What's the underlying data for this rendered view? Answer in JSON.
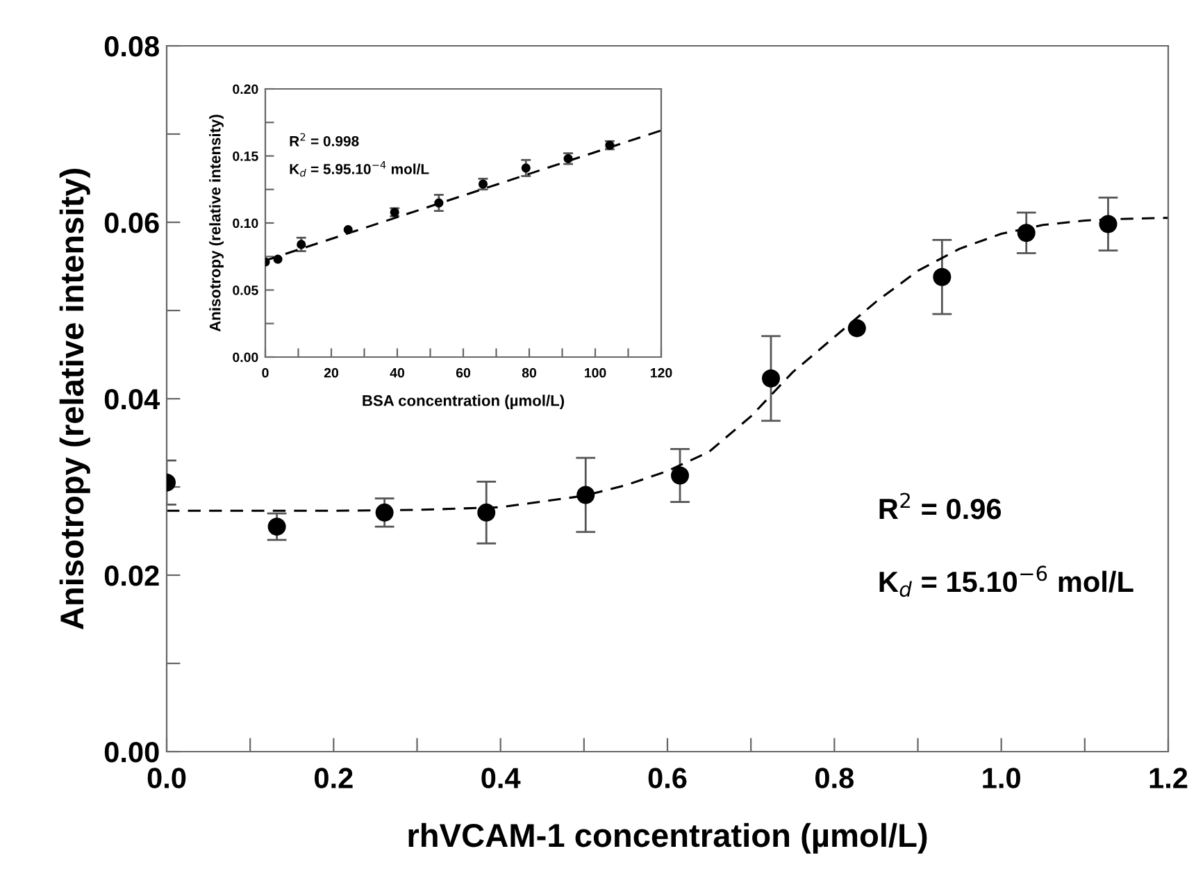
{
  "chart_data": [
    {
      "type": "scatter",
      "xlabel": "rhVCAM-1 concentration (µmol/L)",
      "ylabel": "Anisotropy (relative intensity)",
      "xlim": [
        0,
        1.2
      ],
      "ylim": [
        0,
        0.08
      ],
      "xticks": [
        {
          "value": 0,
          "label": "0.0"
        },
        {
          "value": 0.1,
          "label": null
        },
        {
          "value": 0.2,
          "label": "0.2"
        },
        {
          "value": 0.3,
          "label": null
        },
        {
          "value": 0.4,
          "label": "0.4"
        },
        {
          "value": 0.5,
          "label": null
        },
        {
          "value": 0.6,
          "label": "0.6"
        },
        {
          "value": 0.7,
          "label": null
        },
        {
          "value": 0.8,
          "label": "0.8"
        },
        {
          "value": 0.9,
          "label": null
        },
        {
          "value": 1.0,
          "label": "1.0"
        },
        {
          "value": 1.1,
          "label": null
        },
        {
          "value": 1.2,
          "label": "1.2"
        }
      ],
      "yticks": [
        {
          "value": 0,
          "label": "0.00"
        },
        {
          "value": 0.01,
          "label": null
        },
        {
          "value": 0.02,
          "label": "0.02"
        },
        {
          "value": 0.03,
          "label": null
        },
        {
          "value": 0.04,
          "label": "0.04"
        },
        {
          "value": 0.05,
          "label": null
        },
        {
          "value": 0.06,
          "label": "0.06"
        },
        {
          "value": 0.07,
          "label": null
        },
        {
          "value": 0.08,
          "label": "0.08"
        }
      ],
      "grid": false,
      "legend": false,
      "marker": "circle",
      "annotations": [
        "R$^{2}$ = 0.96",
        "K$_{d}$ = 15.10$^{−6}$ mol/L"
      ],
      "series": [
        {
          "type": "scatter",
          "color": "#000000",
          "x": [
            0.0,
            0.132,
            0.261,
            0.383,
            0.502,
            0.615,
            0.724,
            0.827,
            0.929,
            1.03,
            1.128
          ],
          "values": [
            0.0305,
            0.0255,
            0.0271,
            0.0271,
            0.0291,
            0.0313,
            0.0423,
            0.048,
            0.0538,
            0.0588,
            0.0598
          ],
          "errors": [
            0.0025,
            0.0015,
            0.0016,
            0.0035,
            0.0042,
            0.003,
            0.0048,
            null,
            0.0042,
            0.0023,
            0.003
          ]
        },
        {
          "type": "line",
          "color": "#000000",
          "line_style": "dashed",
          "marker": "none",
          "x": [
            0,
            0.1,
            0.2,
            0.3,
            0.4,
            0.5,
            0.55,
            0.6,
            0.65,
            0.7,
            0.75,
            0.8,
            0.85,
            0.9,
            0.95,
            1.0,
            1.05,
            1.1,
            1.15,
            1.2
          ],
          "values": [
            0.0273,
            0.0273,
            0.0273,
            0.0274,
            0.0277,
            0.029,
            0.0302,
            0.0318,
            0.034,
            0.038,
            0.043,
            0.047,
            0.051,
            0.0545,
            0.057,
            0.0587,
            0.0597,
            0.0602,
            0.0604,
            0.0605
          ]
        }
      ]
    },
    {
      "type": "scatter",
      "xlabel": "BSA concentration (µmol/L)",
      "ylabel": "Anisotropy (relative intensity)",
      "xlim": [
        0,
        120
      ],
      "ylim": [
        0,
        0.2
      ],
      "xticks": [
        0,
        {
          "value": 10,
          "label": null
        },
        20,
        {
          "value": 30,
          "label": null
        },
        40,
        {
          "value": 50,
          "label": null
        },
        60,
        {
          "value": 70,
          "label": null
        },
        80,
        {
          "value": 90,
          "label": null
        },
        100,
        {
          "value": 110,
          "label": null
        },
        120
      ],
      "yticks": [
        {
          "value": 0,
          "label": "0.00"
        },
        {
          "value": 0.025,
          "label": null
        },
        {
          "value": 0.05,
          "label": "0.05"
        },
        {
          "value": 0.075,
          "label": null
        },
        {
          "value": 0.1,
          "label": "0.10"
        },
        {
          "value": 0.125,
          "label": null
        },
        {
          "value": 0.15,
          "label": "0.15"
        },
        {
          "value": 0.175,
          "label": null
        },
        {
          "value": 0.2,
          "label": "0.20"
        }
      ],
      "grid": false,
      "legend": false,
      "marker": "circle",
      "annotations": [
        "R$^{2}$ = 0.998",
        "K$_{d}$ = 5.95.10$^{−4}$ mol/L"
      ],
      "series": [
        {
          "type": "scatter",
          "color": "#000000",
          "x": [
            0,
            3.8,
            10.9,
            25.1,
            39.2,
            52.6,
            66,
            79,
            91.8,
            104.4
          ],
          "values": [
            0.071,
            0.073,
            0.084,
            0.095,
            0.108,
            0.115,
            0.129,
            0.141,
            0.148,
            0.158
          ],
          "errors": [
            null,
            null,
            0.005,
            null,
            0.003,
            0.006,
            0.004,
            0.006,
            0.004,
            0.003
          ]
        },
        {
          "type": "line",
          "color": "#000000",
          "line_style": "dashed",
          "marker": "none",
          "x": [
            0,
            120
          ],
          "values": [
            0.072,
            0.169
          ]
        }
      ]
    }
  ]
}
